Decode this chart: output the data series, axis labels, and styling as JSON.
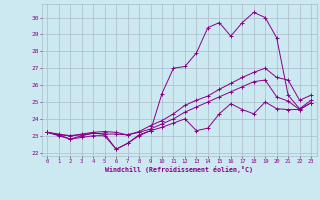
{
  "xlabel": "Windchill (Refroidissement éolien,°C)",
  "bg_color": "#cce8f0",
  "line_color": "#880088",
  "grid_color": "#aabbcc",
  "xlim": [
    -0.5,
    23.5
  ],
  "ylim": [
    21.8,
    30.8
  ],
  "xticks": [
    0,
    1,
    2,
    3,
    4,
    5,
    6,
    7,
    8,
    9,
    10,
    11,
    12,
    13,
    14,
    15,
    16,
    17,
    18,
    19,
    20,
    21,
    22,
    23
  ],
  "yticks": [
    22,
    23,
    24,
    25,
    26,
    27,
    28,
    29,
    30
  ],
  "lines": [
    [
      23.2,
      23.0,
      22.8,
      22.9,
      23.0,
      23.0,
      22.2,
      22.55,
      23.0,
      23.3,
      23.5,
      23.75,
      24.0,
      23.3,
      23.45,
      24.3,
      24.9,
      24.55,
      24.3,
      25.0,
      24.6,
      24.55,
      24.55,
      24.95
    ],
    [
      23.2,
      23.05,
      23.0,
      23.05,
      23.15,
      23.1,
      23.1,
      23.05,
      23.2,
      23.4,
      23.7,
      24.0,
      24.4,
      24.7,
      25.0,
      25.3,
      25.6,
      25.9,
      26.2,
      26.3,
      25.3,
      25.05,
      24.55,
      24.95
    ],
    [
      23.2,
      23.1,
      23.0,
      23.1,
      23.2,
      23.25,
      23.2,
      23.05,
      23.25,
      23.6,
      23.9,
      24.3,
      24.8,
      25.1,
      25.35,
      25.75,
      26.1,
      26.45,
      26.75,
      27.0,
      26.45,
      26.3,
      25.1,
      25.4
    ],
    [
      23.2,
      23.05,
      22.8,
      23.0,
      23.15,
      23.1,
      22.2,
      22.55,
      23.05,
      23.3,
      25.5,
      27.0,
      27.1,
      27.9,
      29.4,
      29.7,
      28.9,
      29.7,
      30.3,
      30.0,
      28.8,
      25.4,
      24.6,
      25.1
    ]
  ]
}
